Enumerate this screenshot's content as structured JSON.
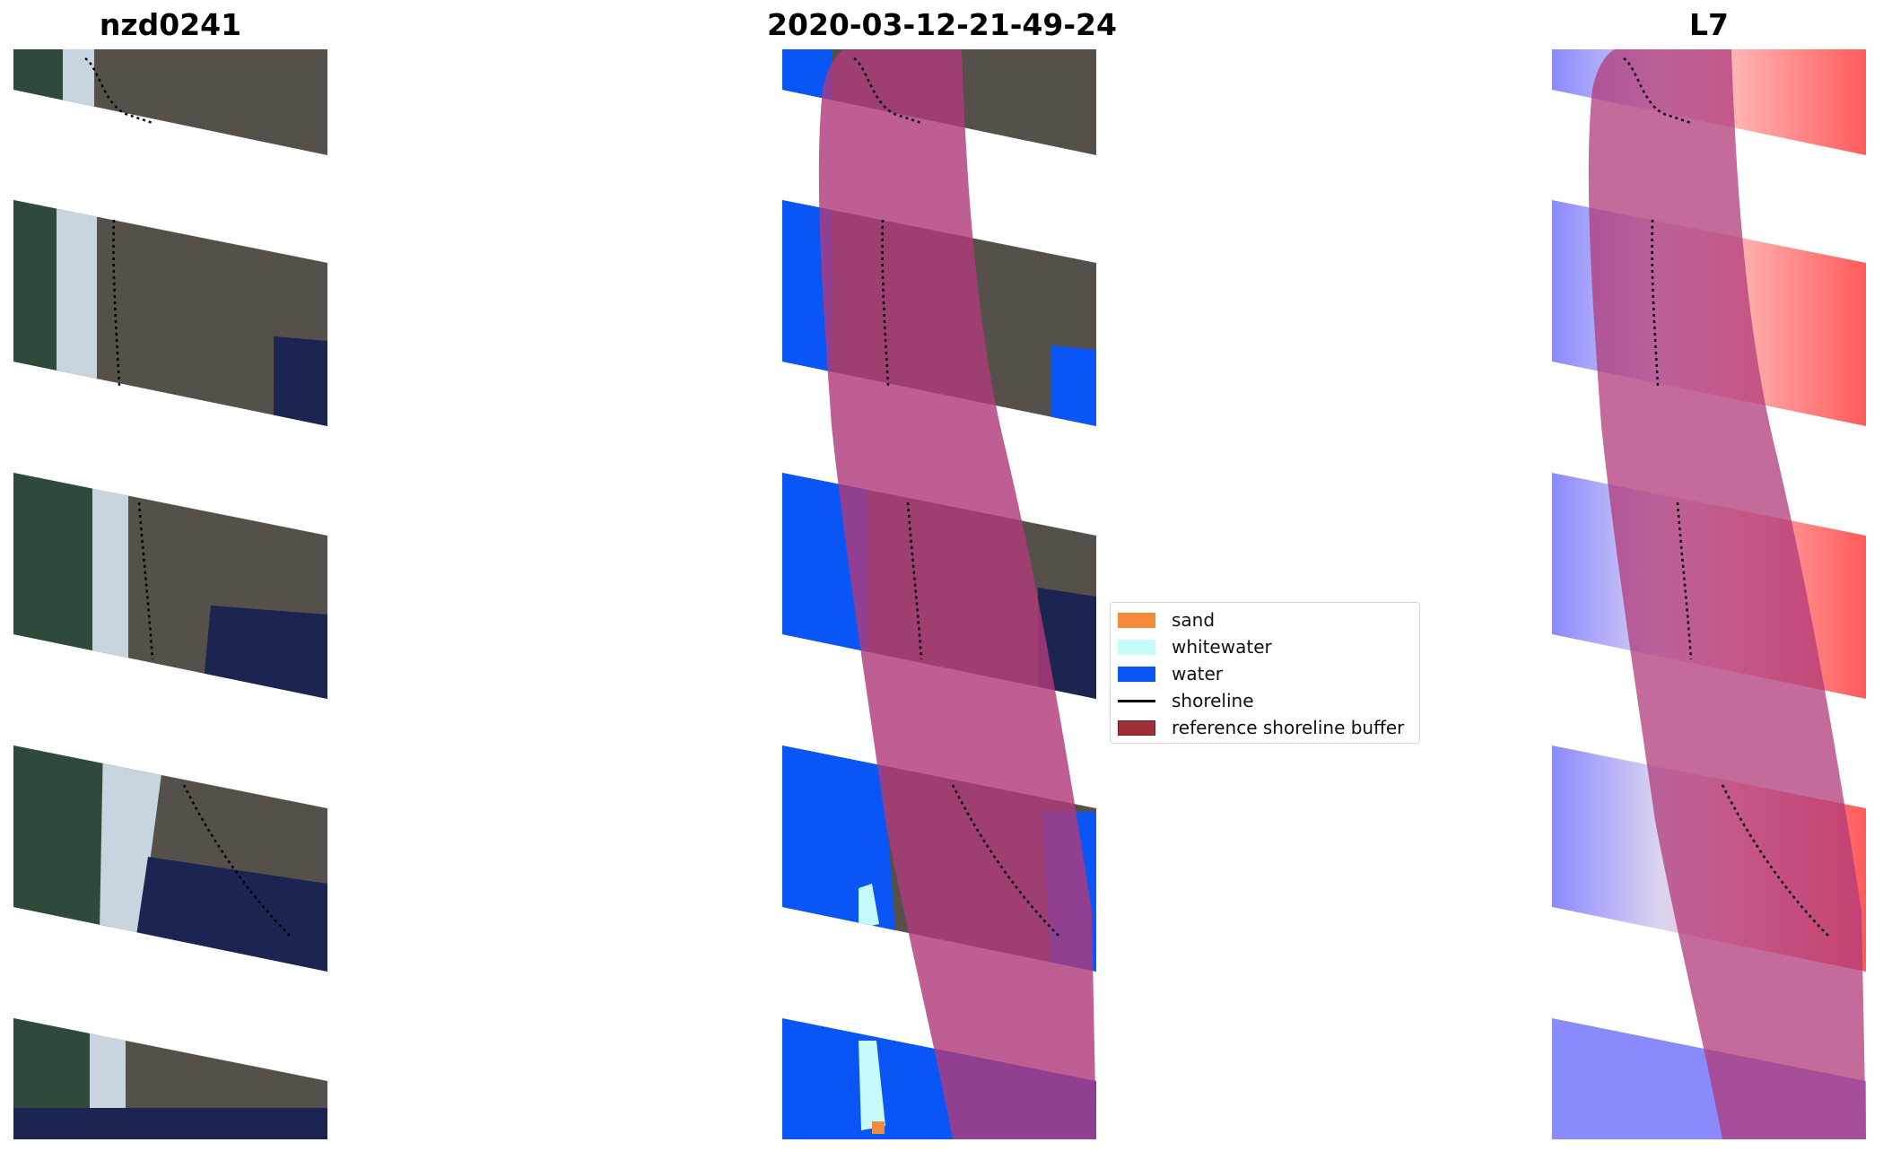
{
  "titles": {
    "panel1": "nzd0241",
    "panel2": "2020-03-12-21-49-24",
    "panel3": "L7"
  },
  "legend": {
    "items": [
      {
        "label": "sand",
        "color": "#f58a3c",
        "kind": "patch"
      },
      {
        "label": "whitewater",
        "color": "#c6fbfb",
        "kind": "patch"
      },
      {
        "label": "water",
        "color": "#0a55f5",
        "kind": "patch"
      },
      {
        "label": "shoreline",
        "color": "#000000",
        "kind": "line"
      },
      {
        "label": "reference shoreline buffer",
        "color": "#9c3036",
        "kind": "patch"
      }
    ]
  },
  "colors": {
    "land": "#55504a",
    "vegetation": "#2f4a3a",
    "beach": "#c8d4de",
    "deep_water": "#1c2452",
    "buffer_overlay": "#b03a7a",
    "water_class": "#0a55f5",
    "index_positive": "#ff5a5a",
    "index_negative": "#8a8aff"
  }
}
